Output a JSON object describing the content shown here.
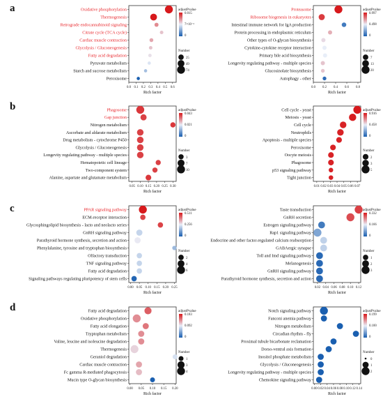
{
  "figure": {
    "panel_letters": [
      "a",
      "b",
      "c",
      "d"
    ]
  },
  "colors": {
    "highlight": "#e8262b",
    "text": "#111111",
    "low": "#1a5fb0",
    "mid": "#e9eef8",
    "high": "#d7191c"
  },
  "chart_data": [
    {
      "panel": "a",
      "type": "scatter",
      "title": "",
      "xlabel": "Rich factor",
      "ylabel": "",
      "xticks": [
        "0.0",
        "0.1",
        "0.2",
        "0.3",
        "0.4",
        "0.5",
        "0.6"
      ],
      "xlim": [
        0,
        0.65
      ],
      "color_legend": {
        "title": "adjustPvalue",
        "labels": [
          "0.015",
          "7×10⁻³",
          "0"
        ],
        "max": 0.015
      },
      "size_legend": {
        "title": "Number",
        "labels": [
          "25",
          "49",
          "74"
        ],
        "values": [
          25,
          49,
          74
        ]
      },
      "points": [
        {
          "term": "Oxidative phosphorylation",
          "x": 0.55,
          "count": 74,
          "p": 0.0,
          "highlight": true
        },
        {
          "term": "Thermogenesis",
          "x": 0.34,
          "count": 49,
          "p": 0.0,
          "highlight": true
        },
        {
          "term": "Retrograde endocannabinoid signaling",
          "x": 0.38,
          "count": 10,
          "p": 0.004,
          "highlight": true
        },
        {
          "term": "Citrate cycle (TCA cycle)",
          "x": 0.45,
          "count": 6,
          "p": 0.006,
          "highlight": true
        },
        {
          "term": "Cardiac muscle contraction",
          "x": 0.31,
          "count": 8,
          "p": 0.005,
          "highlight": true
        },
        {
          "term": "Glycolysis / Gluconeogenesis",
          "x": 0.3,
          "count": 6,
          "p": 0.006,
          "highlight": true
        },
        {
          "term": "Fatty acid degradation",
          "x": 0.29,
          "count": 5,
          "p": 0.007,
          "highlight": true
        },
        {
          "term": "Pyruvate metabolism",
          "x": 0.28,
          "count": 4,
          "p": 0.008,
          "highlight": false
        },
        {
          "term": "Starch and sucrose metabolism",
          "x": 0.23,
          "count": 4,
          "p": 0.01,
          "highlight": false
        },
        {
          "term": "Peroxisome",
          "x": 0.13,
          "count": 4,
          "p": 0.015,
          "highlight": false
        }
      ]
    },
    {
      "panel": "a",
      "type": "scatter",
      "title": "",
      "xlabel": "Rich factor",
      "ylabel": "",
      "xticks": [
        "0.0",
        "0.2",
        "0.4",
        "0.6",
        "0.8"
      ],
      "xlim": [
        0,
        0.85
      ],
      "color_legend": {
        "title": "adjustPvalue",
        "labels": [
          "0.997",
          "0.498",
          "0"
        ],
        "max": 0.997
      },
      "size_legend": {
        "title": "Number",
        "labels": [
          "7",
          "13",
          "20"
        ],
        "values": [
          7,
          13,
          20
        ]
      },
      "points": [
        {
          "term": "Proteasome",
          "x": 0.45,
          "count": 20,
          "p": 0.0,
          "highlight": true
        },
        {
          "term": "Ribosome biogenesis in eukaryotes",
          "x": 0.15,
          "count": 10,
          "p": 0.08,
          "highlight": true
        },
        {
          "term": "Intestinal immune network for IgA production",
          "x": 0.55,
          "count": 4,
          "p": 0.9,
          "highlight": false
        },
        {
          "term": "Protein processing in endoplasmic reticulum",
          "x": 0.3,
          "count": 3,
          "p": 0.35,
          "highlight": false
        },
        {
          "term": "Other types of O-glycan biosynthesis",
          "x": 0.18,
          "count": 3,
          "p": 0.45,
          "highlight": false
        },
        {
          "term": "Cytokine-cytokine receptor interaction",
          "x": 0.2,
          "count": 3,
          "p": 0.5,
          "highlight": false
        },
        {
          "term": "Primary bile acid biosynthesis",
          "x": 0.21,
          "count": 3,
          "p": 0.5,
          "highlight": false
        },
        {
          "term": "Longevity regulating pathway - multiple species",
          "x": 0.17,
          "count": 3,
          "p": 0.4,
          "highlight": false
        },
        {
          "term": "Glucosinolate biosynthesis",
          "x": 0.17,
          "count": 2,
          "p": 0.4,
          "highlight": false
        },
        {
          "term": "Autophagy - other",
          "x": 0.2,
          "count": 2,
          "p": 0.95,
          "highlight": false
        }
      ]
    },
    {
      "panel": "b",
      "type": "scatter",
      "title": "",
      "xlabel": "Rich factor",
      "ylabel": "",
      "xticks": [
        "0.05",
        "0.10",
        "0.15",
        "0.20",
        "0.25",
        "0.30"
      ],
      "xlim": [
        0.03,
        0.32
      ],
      "color_legend": {
        "title": "adjustPvalue",
        "labels": [
          "0.043",
          "0.021",
          "0"
        ],
        "max": 0.043
      },
      "size_legend": {
        "title": "Number",
        "labels": [
          "3",
          "7",
          "10"
        ],
        "values": [
          3,
          7,
          10
        ]
      },
      "points": [
        {
          "term": "Phagosome",
          "x": 0.1,
          "count": 10,
          "p": 0.003,
          "highlight": true
        },
        {
          "term": "Gap junction",
          "x": 0.12,
          "count": 5,
          "p": 0.004,
          "highlight": true
        },
        {
          "term": "Nitrogen metabolism",
          "x": 0.3,
          "count": 3,
          "p": 0.003,
          "highlight": false
        },
        {
          "term": "Ascorbate and aldarate metabolism",
          "x": 0.1,
          "count": 6,
          "p": 0.004,
          "highlight": false
        },
        {
          "term": "Drug metabolism - cytochrome P450",
          "x": 0.1,
          "count": 6,
          "p": 0.004,
          "highlight": false
        },
        {
          "term": "Glycolysis / Gluconeogenesis",
          "x": 0.1,
          "count": 6,
          "p": 0.004,
          "highlight": false
        },
        {
          "term": "Longevity regulating pathway - multiple species",
          "x": 0.1,
          "count": 6,
          "p": 0.004,
          "highlight": false
        },
        {
          "term": "Hematopoietic cell lineage",
          "x": 0.21,
          "count": 3,
          "p": 0.004,
          "highlight": false
        },
        {
          "term": "Two-component system",
          "x": 0.19,
          "count": 3,
          "p": 0.004,
          "highlight": false
        },
        {
          "term": "Alanine, aspartate and glutamate metabolism",
          "x": 0.15,
          "count": 4,
          "p": 0.003,
          "highlight": false
        }
      ]
    },
    {
      "panel": "b",
      "type": "scatter",
      "title": "",
      "xlabel": "Rich factor",
      "ylabel": "",
      "xticks": [
        "0.01",
        "0.02",
        "0.03",
        "0.04",
        "0.05",
        "0.06",
        "0.07"
      ],
      "xlim": [
        0.005,
        0.075
      ],
      "color_legend": {
        "title": "adjustPvalue",
        "labels": [
          "0.916",
          "0.458",
          "0"
        ],
        "max": 0.916
      },
      "size_legend": {
        "title": "Number",
        "labels": [
          "2",
          "3",
          "5"
        ],
        "values": [
          2,
          3,
          5
        ]
      },
      "points": [
        {
          "term": "Cell cycle - yeast",
          "x": 0.07,
          "count": 5,
          "p": 0.0,
          "highlight": false
        },
        {
          "term": "Meiosis - yeast",
          "x": 0.063,
          "count": 4,
          "p": 0.01,
          "highlight": false
        },
        {
          "term": "Cell cycle",
          "x": 0.049,
          "count": 3,
          "p": 0.02,
          "highlight": false
        },
        {
          "term": "Neutrophils",
          "x": 0.045,
          "count": 3,
          "p": 0.02,
          "highlight": false
        },
        {
          "term": "Apoptosis - multiple species",
          "x": 0.043,
          "count": 2,
          "p": 0.02,
          "highlight": false
        },
        {
          "term": "Peroxisome",
          "x": 0.034,
          "count": 2,
          "p": 0.02,
          "highlight": false
        },
        {
          "term": "Oocyte meiosis",
          "x": 0.031,
          "count": 2,
          "p": 0.02,
          "highlight": false
        },
        {
          "term": "Phagosome",
          "x": 0.031,
          "count": 2,
          "p": 0.02,
          "highlight": false
        },
        {
          "term": "p53 signaling pathway",
          "x": 0.031,
          "count": 1,
          "p": 0.02,
          "highlight": false
        },
        {
          "term": "Tight junction",
          "x": 0.031,
          "count": 1,
          "p": 0.02,
          "highlight": false
        }
      ]
    },
    {
      "panel": "c",
      "type": "scatter",
      "title": "",
      "xlabel": "Rich factor",
      "ylabel": "",
      "xticks": [
        "0.00",
        "0.05",
        "0.10",
        "0.15",
        "0.20",
        "0.25"
      ],
      "xlim": [
        -0.01,
        0.26
      ],
      "color_legend": {
        "title": "adjustPvalue",
        "labels": [
          "0.511",
          "0.256",
          "0"
        ],
        "max": 0.511
      },
      "size_legend": {
        "title": "Number",
        "labels": [
          "2",
          "4",
          "6"
        ],
        "values": [
          2,
          4,
          6
        ]
      },
      "points": [
        {
          "term": "PPAR signaling pathway",
          "x": 0.07,
          "count": 6,
          "p": 0.0,
          "highlight": true
        },
        {
          "term": "ECM-receptor interaction",
          "x": 0.07,
          "count": 2,
          "p": 0.05,
          "highlight": false
        },
        {
          "term": "Glycosphingolipid biosynthesis - lacto and neolacto series",
          "x": 0.17,
          "count": 2,
          "p": 0.05,
          "highlight": false
        },
        {
          "term": "GnRH signaling pathway",
          "x": 0.05,
          "count": 3,
          "p": 0.3,
          "highlight": false
        },
        {
          "term": "Parathyroid hormone synthesis, secretion and action",
          "x": 0.04,
          "count": 3,
          "p": 0.25,
          "highlight": false
        },
        {
          "term": "Phenylalanine, tyrosine and tryptophan biosynthesis",
          "x": 0.25,
          "count": 1,
          "p": 0.35,
          "highlight": false
        },
        {
          "term": "Olfactory transduction",
          "x": 0.05,
          "count": 2,
          "p": 0.3,
          "highlight": false
        },
        {
          "term": "TNF signaling pathway",
          "x": 0.05,
          "count": 2,
          "p": 0.3,
          "highlight": false
        },
        {
          "term": "Fatty acid degradation",
          "x": 0.05,
          "count": 2,
          "p": 0.3,
          "highlight": false
        },
        {
          "term": "Signaling pathways regulating pluripotency of stem cells",
          "x": 0.02,
          "count": 2,
          "p": 0.5,
          "highlight": false
        }
      ]
    },
    {
      "panel": "c",
      "type": "scatter",
      "title": "",
      "xlabel": "Rich factor",
      "ylabel": "",
      "xticks": [
        "0.02",
        "0.04",
        "0.06",
        "0.08",
        "0.10",
        "0.12"
      ],
      "xlim": [
        0.01,
        0.125
      ],
      "color_legend": {
        "title": "adjustPvalue",
        "labels": [
          "0.332",
          "0.166",
          "0"
        ],
        "max": 0.332
      },
      "size_legend": {
        "title": "Number",
        "labels": [
          "1",
          "2",
          "3"
        ],
        "values": [
          1,
          2,
          3
        ]
      },
      "points": [
        {
          "term": "Taste transduction",
          "x": 0.12,
          "count": 3,
          "p": 0.03,
          "highlight": false
        },
        {
          "term": "GnRH secretion",
          "x": 0.1,
          "count": 3,
          "p": 0.04,
          "highlight": false
        },
        {
          "term": "Estrogen signaling pathway",
          "x": 0.03,
          "count": 2,
          "p": 0.3,
          "highlight": false
        },
        {
          "term": "Rap1 signaling pathway",
          "x": 0.02,
          "count": 3,
          "p": 0.25,
          "highlight": false
        },
        {
          "term": "Endocrine and other factor-regulated calcium reabsorption",
          "x": 0.035,
          "count": 2,
          "p": 0.2,
          "highlight": false
        },
        {
          "term": "GABAergic synapse",
          "x": 0.035,
          "count": 2,
          "p": 0.2,
          "highlight": false
        },
        {
          "term": "Toll and Imd signaling pathway",
          "x": 0.025,
          "count": 2,
          "p": 0.32,
          "highlight": false
        },
        {
          "term": "Melanogenesis",
          "x": 0.025,
          "count": 2,
          "p": 0.32,
          "highlight": false
        },
        {
          "term": "GnRH signaling pathway",
          "x": 0.025,
          "count": 2,
          "p": 0.32,
          "highlight": false
        },
        {
          "term": "Parathyroid hormone synthesis, secretion and action",
          "x": 0.025,
          "count": 2,
          "p": 0.32,
          "highlight": false
        }
      ]
    },
    {
      "panel": "d",
      "type": "scatter",
      "title": "",
      "xlabel": "Rich factor",
      "ylabel": "",
      "xticks": [
        "0.00",
        "0.05",
        "0.10",
        "0.15",
        "0.20"
      ],
      "xlim": [
        -0.005,
        0.205
      ],
      "color_legend": {
        "title": "adjustPvalue",
        "labels": [
          "0.183",
          "0.092",
          "0"
        ],
        "max": 0.183
      },
      "size_legend": {
        "title": "Number",
        "labels": [
          "1",
          "3",
          "4"
        ],
        "values": [
          1,
          3,
          4
        ]
      },
      "points": [
        {
          "term": "Fatty acid degradation",
          "x": 0.08,
          "count": 3,
          "p": 0.03,
          "highlight": false
        },
        {
          "term": "Oxidative phosphorylation",
          "x": 0.03,
          "count": 4,
          "p": 0.05,
          "highlight": false
        },
        {
          "term": "Fatty acid elongation",
          "x": 0.07,
          "count": 2,
          "p": 0.04,
          "highlight": false
        },
        {
          "term": "Tryptophan metabolism",
          "x": 0.05,
          "count": 2,
          "p": 0.05,
          "highlight": false
        },
        {
          "term": "Valine, leucine and isoleucine degradation",
          "x": 0.05,
          "count": 2,
          "p": 0.05,
          "highlight": false
        },
        {
          "term": "Thermogenesis",
          "x": 0.02,
          "count": 4,
          "p": 0.08,
          "highlight": false
        },
        {
          "term": "Geraniol degradation",
          "x": 0.2,
          "count": 1,
          "p": 0.1,
          "highlight": false
        },
        {
          "term": "Cardiac muscle contraction",
          "x": 0.04,
          "count": 2,
          "p": 0.06,
          "highlight": false
        },
        {
          "term": "Fc gamma R-mediated phagocytosis",
          "x": 0.04,
          "count": 2,
          "p": 0.07,
          "highlight": false
        },
        {
          "term": "Mucin type O-glycan biosynthesis",
          "x": 0.1,
          "count": 1,
          "p": 0.183,
          "highlight": false
        }
      ]
    },
    {
      "panel": "d",
      "type": "scatter",
      "title": "",
      "xlabel": "Rich factor",
      "ylabel": "",
      "xticks": [
        "0.00",
        "0.02",
        "0.04",
        "0.06",
        "0.08",
        "0.10",
        "0.12",
        "0.14"
      ],
      "xlim": [
        -0.003,
        0.145
      ],
      "color_legend": {
        "title": "adjustPvalue",
        "labels": [
          "0.199",
          "0.100",
          "0"
        ],
        "max": 0.199
      },
      "size_legend": {
        "title": "Number",
        "labels": [
          "0",
          "1",
          "2"
        ],
        "values": [
          0,
          1,
          2
        ]
      },
      "points": [
        {
          "term": "Notch signaling pathway",
          "x": 0.03,
          "count": 2,
          "p": 0.199,
          "highlight": false
        },
        {
          "term": "Fanconi anemia pathway",
          "x": 0.03,
          "count": 1,
          "p": 0.199,
          "highlight": false
        },
        {
          "term": "Nitrogen metabolism",
          "x": 0.08,
          "count": 1,
          "p": 0.199,
          "highlight": false
        },
        {
          "term": "Circadian rhythm - fly",
          "x": 0.13,
          "count": 1,
          "p": 0.199,
          "highlight": false
        },
        {
          "term": "Proximal tubule bicarbonate reclamation",
          "x": 0.06,
          "count": 1,
          "p": 0.199,
          "highlight": false
        },
        {
          "term": "Dorso-ventral axis formation",
          "x": 0.045,
          "count": 1,
          "p": 0.199,
          "highlight": false
        },
        {
          "term": "Inositol phosphate metabolism",
          "x": 0.02,
          "count": 1,
          "p": 0.199,
          "highlight": false
        },
        {
          "term": "Glycolysis / Gluconeogenesis",
          "x": 0.02,
          "count": 1,
          "p": 0.199,
          "highlight": false
        },
        {
          "term": "Longevity regulating pathway - multiple species",
          "x": 0.02,
          "count": 1,
          "p": 0.199,
          "highlight": false
        },
        {
          "term": "Chemokine signaling pathway",
          "x": 0.015,
          "count": 1,
          "p": 0.199,
          "highlight": false
        }
      ]
    }
  ]
}
